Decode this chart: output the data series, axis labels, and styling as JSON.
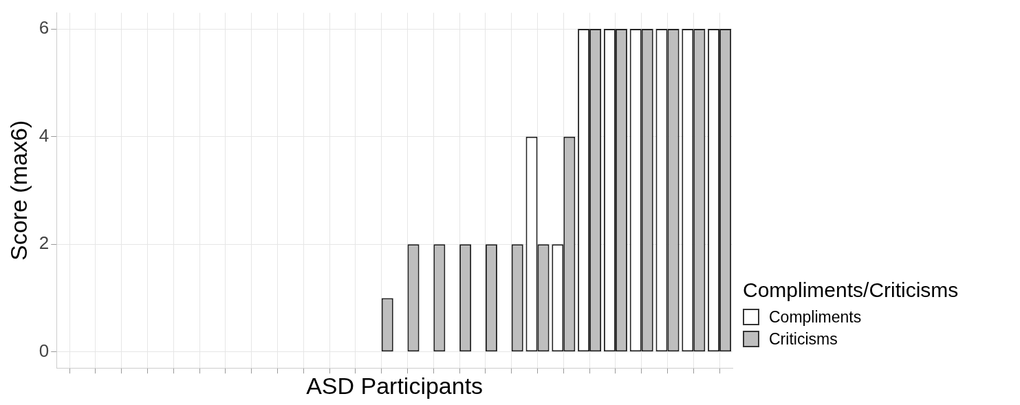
{
  "chart_data": {
    "type": "bar",
    "xlabel": "ASD Participants",
    "ylabel": "Score (max6)",
    "legend_title": "Compliments/Criticisms",
    "categories": [
      null,
      null,
      null,
      null,
      null,
      null,
      null,
      null,
      null,
      null,
      null,
      null,
      null,
      null,
      null,
      null,
      null,
      null,
      null,
      null,
      null,
      null,
      null,
      null,
      null,
      null
    ],
    "series": [
      {
        "name": "Compliments",
        "color": "#ffffff",
        "values": [
          0,
          0,
          0,
          0,
          0,
          0,
          0,
          0,
          0,
          0,
          0,
          0,
          0,
          0,
          0,
          0,
          0,
          0,
          4,
          2,
          6,
          6,
          6,
          6,
          6,
          6
        ]
      },
      {
        "name": "Criticisms",
        "color": "#bebebe",
        "values": [
          0,
          0,
          0,
          0,
          0,
          0,
          0,
          0,
          0,
          0,
          0,
          0,
          1,
          2,
          2,
          2,
          2,
          2,
          2,
          4,
          6,
          6,
          6,
          6,
          6,
          6
        ]
      }
    ],
    "ylim": [
      -0.3,
      6.3
    ],
    "yticks": [
      0,
      2,
      4,
      6
    ],
    "grid": true,
    "legend": "right",
    "tick_labels": "y"
  }
}
